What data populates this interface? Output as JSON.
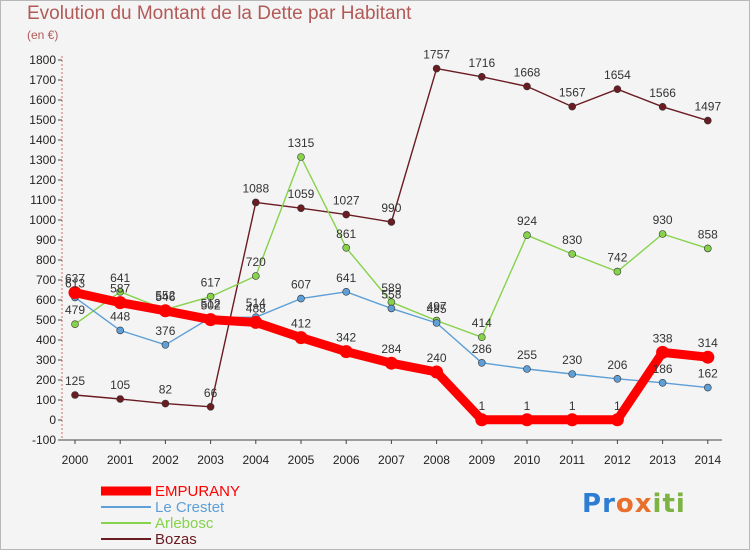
{
  "title": "Evolution du Montant de la Dette par Habitant",
  "unit": "(en €)",
  "brand": "Proxiti",
  "chart_data": {
    "type": "line",
    "title": "Evolution du Montant de la Dette par Habitant",
    "ylabel": "(en €)",
    "ylim": [
      -100,
      1800
    ],
    "yticks": [
      -100,
      0,
      100,
      200,
      300,
      400,
      500,
      600,
      700,
      800,
      900,
      1000,
      1100,
      1200,
      1300,
      1400,
      1500,
      1600,
      1700,
      1800
    ],
    "x": [
      "2000",
      "2001",
      "2002",
      "2003",
      "2004",
      "2005",
      "2006",
      "2007",
      "2008",
      "2009",
      "2010",
      "2011",
      "2012",
      "2013",
      "2014"
    ],
    "grid": false,
    "legend": "bottom-left",
    "series": [
      {
        "name": "EMPURANY",
        "color": "#ff0000",
        "values": [
          637,
          587,
          546,
          502,
          488,
          412,
          342,
          284,
          240,
          1,
          1,
          1,
          1,
          338,
          314
        ]
      },
      {
        "name": "Le Crestet",
        "color": "#5d9fd6",
        "values": [
          613,
          448,
          376,
          512,
          514,
          607,
          641,
          558,
          485,
          286,
          255,
          230,
          206,
          186,
          162
        ]
      },
      {
        "name": "Arlebosc",
        "color": "#86d24a",
        "values": [
          479,
          641,
          552,
          617,
          720,
          1315,
          861,
          589,
          497,
          414,
          924,
          830,
          742,
          930,
          858
        ]
      },
      {
        "name": "Bozas",
        "color": "#6b1b22",
        "values": [
          125,
          105,
          82,
          66,
          1088,
          1059,
          1027,
          990,
          1757,
          1716,
          1668,
          1567,
          1654,
          1566,
          1497
        ]
      }
    ]
  }
}
